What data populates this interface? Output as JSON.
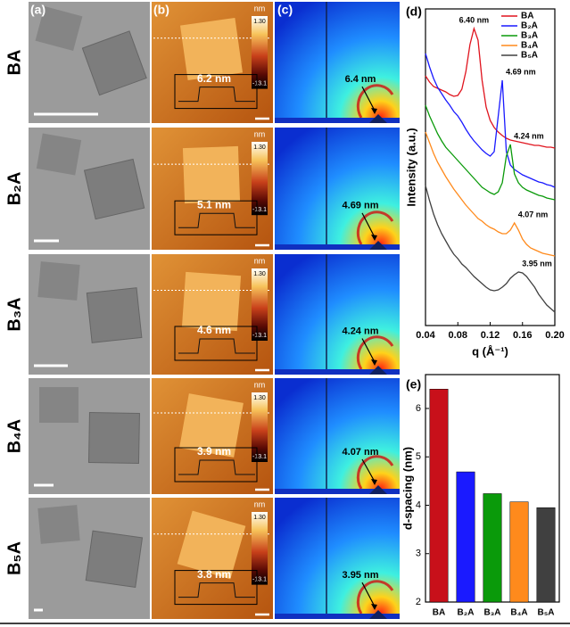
{
  "panel_labels": [
    "(a)",
    "(b)",
    "(c)"
  ],
  "colorbar": {
    "unit": "nm",
    "max": "1.30",
    "min": "-13.1"
  },
  "rows": [
    {
      "label": "BA",
      "afm_height": "6.2 nm",
      "giwaxs_spacing": "6.4 nm"
    },
    {
      "label": "B₂A",
      "afm_height": "5.1 nm",
      "giwaxs_spacing": "4.69 nm"
    },
    {
      "label": "B₃A",
      "afm_height": "4.6 nm",
      "giwaxs_spacing": "4.24 nm"
    },
    {
      "label": "B₄A",
      "afm_height": "3.9 nm",
      "giwaxs_spacing": "4.07 nm"
    },
    {
      "label": "B₅A",
      "afm_height": "3.8 nm",
      "giwaxs_spacing": "3.95 nm"
    }
  ],
  "chart_data": [
    {
      "type": "line",
      "label": "(d)",
      "x_label": "q (Å⁻¹)",
      "y_label": "Intensity (a.u.)",
      "x": [
        0.04,
        0.045,
        0.05,
        0.055,
        0.06,
        0.065,
        0.07,
        0.075,
        0.08,
        0.085,
        0.09,
        0.095,
        0.1,
        0.105,
        0.11,
        0.115,
        0.12,
        0.125,
        0.13,
        0.135,
        0.14,
        0.145,
        0.15,
        0.155,
        0.16,
        0.165,
        0.17,
        0.175,
        0.18,
        0.185,
        0.19,
        0.195,
        0.2
      ],
      "xlim": [
        0.04,
        0.2
      ],
      "xticks": [
        0.04,
        0.08,
        0.12,
        0.16,
        {
          "value": 0.2,
          "label": "0.20"
        }
      ],
      "ylim": [
        0,
        355
      ],
      "legend": "upper right",
      "series": [
        {
          "name": "BA",
          "color": "#e0141e",
          "peak_label": "6.40 nm",
          "values": [
            280,
            273,
            268,
            266,
            264,
            262,
            259,
            257,
            258,
            265,
            285,
            315,
            333,
            320,
            275,
            245,
            230,
            222,
            217,
            213,
            210,
            208,
            207,
            206,
            205,
            204,
            203,
            202,
            202,
            201,
            200,
            200,
            199
          ]
        },
        {
          "name": "B₂A",
          "color": "#1a1aff",
          "peak_label": "4.69 nm",
          "values": [
            305,
            290,
            277,
            267,
            260,
            253,
            247,
            240,
            235,
            228,
            220,
            213,
            207,
            202,
            197,
            193,
            190,
            195,
            235,
            275,
            195,
            180,
            175,
            172,
            169,
            167,
            165,
            163,
            161,
            160,
            158,
            157,
            155
          ]
        },
        {
          "name": "B₃A",
          "color": "#0a9a0a",
          "peak_label": "4.24 nm",
          "values": [
            247,
            235,
            225,
            215,
            207,
            200,
            195,
            190,
            185,
            180,
            175,
            170,
            165,
            160,
            155,
            152,
            149,
            147,
            150,
            160,
            190,
            203,
            170,
            160,
            155,
            152,
            150,
            148,
            146,
            145,
            143,
            142,
            141
          ]
        },
        {
          "name": "B₄A",
          "color": "#ff8a1c",
          "peak_label": "4.07 nm",
          "values": [
            217,
            205,
            193,
            183,
            175,
            167,
            160,
            153,
            147,
            141,
            135,
            130,
            125,
            120,
            117,
            113,
            110,
            108,
            105,
            103,
            103,
            107,
            115,
            107,
            97,
            91,
            87,
            85,
            83,
            81,
            80,
            79,
            78
          ]
        },
        {
          "name": "B₅A",
          "color": "#404040",
          "peak_label": "3.95 nm",
          "values": [
            157,
            140,
            125,
            113,
            103,
            95,
            87,
            80,
            75,
            69,
            65,
            60,
            55,
            51,
            47,
            43,
            40,
            39,
            40,
            43,
            47,
            53,
            57,
            60,
            59,
            55,
            49,
            43,
            35,
            29,
            23,
            19,
            15
          ]
        }
      ]
    },
    {
      "type": "bar",
      "label": "(e)",
      "y_label": "d-spacing (nm)",
      "categories": [
        "BA",
        "B₂A",
        "B₃A",
        "B₄A",
        "B₅A"
      ],
      "values": [
        6.4,
        4.69,
        4.24,
        4.07,
        3.95
      ],
      "colors": [
        "#c8101a",
        "#1a1aff",
        "#0a9a0a",
        "#ff8a1c",
        "#404040"
      ],
      "ylim": [
        2,
        6.7
      ],
      "yticks": [
        2,
        3,
        4,
        5,
        6
      ]
    }
  ]
}
